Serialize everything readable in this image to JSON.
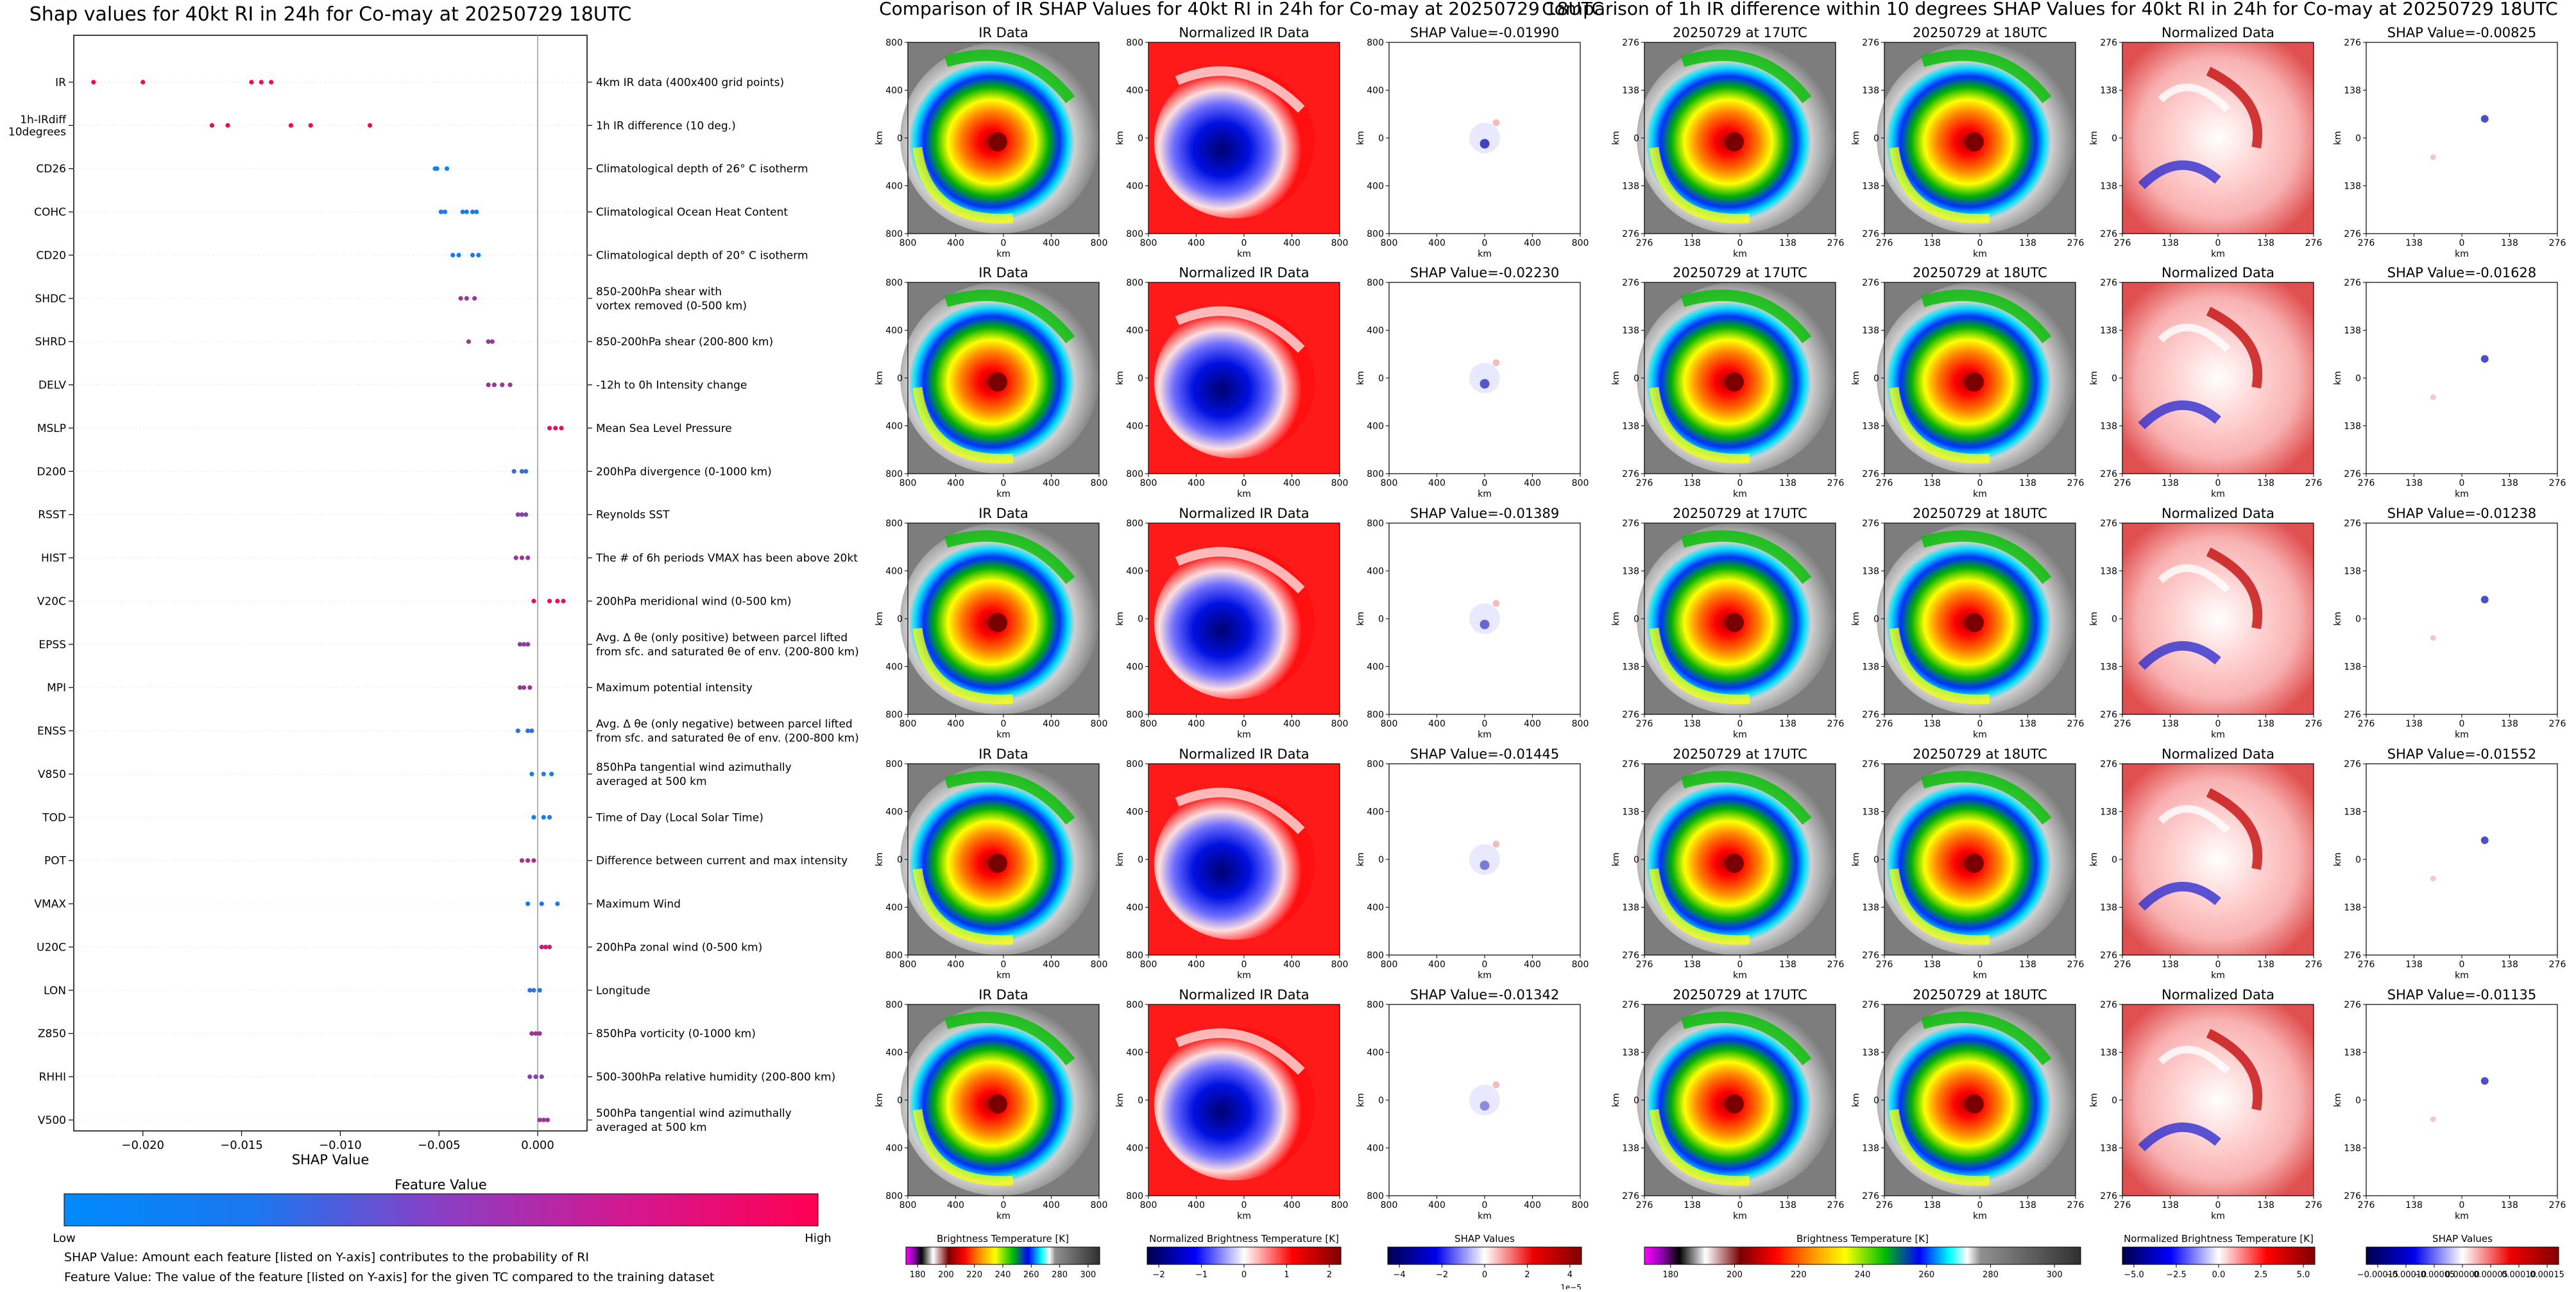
{
  "chart_data": [
    {
      "type": "scatter",
      "title": "Shap values for 40kt RI in 24h for Co-may at 20250729 18UTC",
      "xlabel": "SHAP Value",
      "xlim": [
        -0.0235,
        0.0025
      ],
      "xticks": [
        -0.02,
        -0.015,
        -0.01,
        -0.005,
        0.0
      ],
      "xtick_labels": [
        "−0.020",
        "−0.015",
        "−0.010",
        "−0.005",
        "0.000"
      ],
      "colorbar": {
        "title": "Feature Value",
        "low_label": "Low",
        "high_label": "High",
        "colors": [
          "#008afb",
          "#ff0052"
        ]
      },
      "notes": [
        "SHAP Value: Amount each feature [listed on Y-axis] contributes to the probability of RI",
        "Feature Value: The value of the feature [listed on Y-axis] for the given TC compared to the training dataset"
      ],
      "features": [
        {
          "name": "IR",
          "desc": "4km IR data (400x400 grid points)",
          "values": [
            -0.0225,
            -0.02,
            -0.0145,
            -0.014,
            -0.0135
          ],
          "feature_value": 0.95
        },
        {
          "name": "1h-IRdiff\n10degrees",
          "desc": "1h IR difference (10 deg.)",
          "values": [
            -0.0165,
            -0.0157,
            -0.0125,
            -0.0115,
            -0.0085
          ],
          "feature_value": 0.95
        },
        {
          "name": "CD26",
          "desc": "Climatological depth of 26° C isotherm",
          "values": [
            -0.0052,
            -0.0051,
            -0.0046
          ],
          "feature_value": 0.05
        },
        {
          "name": "COHC",
          "desc": "Climatological Ocean Heat Content",
          "values": [
            -0.0049,
            -0.0047,
            -0.0038,
            -0.0036,
            -0.0033,
            -0.0031
          ],
          "feature_value": 0.1
        },
        {
          "name": "CD20",
          "desc": "Climatological depth of 20° C isotherm",
          "values": [
            -0.0043,
            -0.004,
            -0.0033,
            -0.003
          ],
          "feature_value": 0.1
        },
        {
          "name": "SHDC",
          "desc": "850-200hPa shear with\nvortex removed (0-500 km)",
          "values": [
            -0.0039,
            -0.0036,
            -0.0032
          ],
          "feature_value": 0.6
        },
        {
          "name": "SHRD",
          "desc": "850-200hPa shear (200-800 km)",
          "values": [
            -0.0035,
            -0.0025,
            -0.0023
          ],
          "feature_value": 0.6
        },
        {
          "name": "DELV",
          "desc": "-12h to 0h Intensity change",
          "values": [
            -0.0025,
            -0.0022,
            -0.0018,
            -0.0014
          ],
          "feature_value": 0.6
        },
        {
          "name": "MSLP",
          "desc": "Mean Sea Level Pressure",
          "values": [
            0.0006,
            0.0009,
            0.0012
          ],
          "feature_value": 0.9
        },
        {
          "name": "D200",
          "desc": "200hPa divergence (0-1000 km)",
          "values": [
            -0.0012,
            -0.0008,
            -0.0006
          ],
          "feature_value": 0.2
        },
        {
          "name": "RSST",
          "desc": "Reynolds SST",
          "values": [
            -0.001,
            -0.0008,
            -0.0006
          ],
          "feature_value": 0.5
        },
        {
          "name": "HIST",
          "desc": "The # of 6h periods VMAX has been above 20kt",
          "values": [
            -0.0011,
            -0.0008,
            -0.0005
          ],
          "feature_value": 0.6
        },
        {
          "name": "V20C",
          "desc": "200hPa meridional wind (0-500 km)",
          "values": [
            -0.0002,
            0.0006,
            0.001,
            0.0013
          ],
          "feature_value": 0.9
        },
        {
          "name": "EPSS",
          "desc": "Avg. Δ θe (only positive) between parcel lifted\nfrom sfc. and saturated θe of env. (200-800 km)",
          "values": [
            -0.0009,
            -0.0007,
            -0.0005
          ],
          "feature_value": 0.55
        },
        {
          "name": "MPI",
          "desc": "Maximum potential intensity",
          "values": [
            -0.0009,
            -0.0007,
            -0.0004
          ],
          "feature_value": 0.6
        },
        {
          "name": "ENSS",
          "desc": "Avg. Δ θe (only negative) between parcel lifted\nfrom sfc. and saturated θe of env. (200-800 km)",
          "values": [
            -0.001,
            -0.0005,
            -0.0003
          ],
          "feature_value": 0.2
        },
        {
          "name": "V850",
          "desc": "850hPa tangential wind azimuthally\naveraged at 500 km",
          "values": [
            -0.0003,
            0.0003,
            0.0007
          ],
          "feature_value": 0.1
        },
        {
          "name": "TOD",
          "desc": "Time of Day (Local Solar Time)",
          "values": [
            -0.0002,
            0.0003,
            0.0006
          ],
          "feature_value": 0.1
        },
        {
          "name": "POT",
          "desc": "Difference between current and max intensity",
          "values": [
            -0.0008,
            -0.0005,
            -0.0002
          ],
          "feature_value": 0.7
        },
        {
          "name": "VMAX",
          "desc": "Maximum Wind",
          "values": [
            -0.0005,
            0.0002,
            0.001
          ],
          "feature_value": 0.1
        },
        {
          "name": "U20C",
          "desc": "200hPa zonal wind (0-500 km)",
          "values": [
            0.0002,
            0.0004,
            0.0006
          ],
          "feature_value": 0.8
        },
        {
          "name": "LON",
          "desc": "Longitude",
          "values": [
            -0.0004,
            -0.0002,
            0.0001
          ],
          "feature_value": 0.15
        },
        {
          "name": "Z850",
          "desc": "850hPa vorticity (0-1000 km)",
          "values": [
            -0.0003,
            -0.0001,
            0.0001
          ],
          "feature_value": 0.6
        },
        {
          "name": "RHHI",
          "desc": "500-300hPa relative humidity (200-800 km)",
          "values": [
            -0.0004,
            -0.0001,
            0.0002
          ],
          "feature_value": 0.5
        },
        {
          "name": "V500",
          "desc": "500hPa tangential wind azimuthally\naveraged at 500 km",
          "values": [
            0.0001,
            0.0003,
            0.0005
          ],
          "feature_value": 0.6
        }
      ]
    },
    {
      "type": "heatmap",
      "title": "Comparison of IR SHAP Values for 40kt RI in 24h for Co-may at 20250729 18UTC",
      "column_titles": [
        "IR Data",
        "Normalized IR Data"
      ],
      "shap_titles": [
        "SHAP Value=-0.01990",
        "SHAP Value=-0.02230",
        "SHAP Value=-0.01389",
        "SHAP Value=-0.01445",
        "SHAP Value=-0.01342"
      ],
      "axis_unit": "km",
      "ticks": [
        "800",
        "400",
        "0",
        "400",
        "800"
      ],
      "colorbars": [
        {
          "label": "Brightness Temperature [K]",
          "ticks": [
            "180",
            "200",
            "220",
            "240",
            "260",
            "280",
            "300"
          ]
        },
        {
          "label": "Normalized Brightness Temperature [K]",
          "ticks": [
            "−2",
            "−1",
            "0",
            "1",
            "2"
          ]
        },
        {
          "label": "SHAP Values",
          "ticks": [
            "−4",
            "−2",
            "0",
            "2",
            "4"
          ],
          "exponent": "1e−5"
        }
      ]
    },
    {
      "type": "heatmap",
      "title": "Comparison of 1h IR difference within 10 degrees SHAP Values for 40kt RI in 24h for Co-may at 20250729 18UTC",
      "column_titles": [
        "20250729 at 17UTC",
        "20250729 at 18UTC",
        "Normalized Data"
      ],
      "shap_titles": [
        "SHAP Value=-0.00825",
        "SHAP Value=-0.01628",
        "SHAP Value=-0.01238",
        "SHAP Value=-0.01552",
        "SHAP Value=-0.01135"
      ],
      "axis_unit": "km",
      "ticks": [
        "276",
        "138",
        "0",
        "138",
        "276"
      ],
      "colorbars": [
        {
          "label": "Brightness Temperature [K]",
          "ticks": [
            "180",
            "200",
            "220",
            "240",
            "260",
            "280",
            "300"
          ]
        },
        {
          "label": "Normalized Brightness Temperature [K]",
          "ticks": [
            "−5.0",
            "−2.5",
            "0.0",
            "2.5",
            "5.0"
          ]
        },
        {
          "label": "SHAP Values",
          "ticks": [
            "−0.00015",
            "−0.00010",
            "−0.00005",
            "0.00000",
            "0.00005",
            "0.00010",
            "0.00015"
          ]
        }
      ]
    }
  ]
}
